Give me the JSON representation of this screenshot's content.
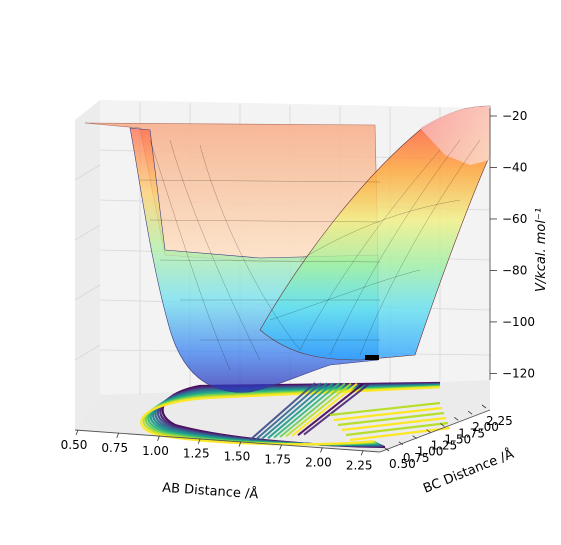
{
  "chart_data": {
    "type": "surface3d",
    "x_axis": {
      "label": "AB Distance /Å",
      "range": [
        0.5,
        2.5
      ],
      "ticks": [
        "0.50",
        "0.75",
        "1.00",
        "1.25",
        "1.50",
        "1.75",
        "2.00",
        "2.25"
      ]
    },
    "y_axis": {
      "label": "BC Distance /Å",
      "range": [
        0.5,
        2.5
      ],
      "ticks": [
        "0.50",
        "0.75",
        "1.00",
        "1.25",
        "1.50",
        "1.75",
        "2.00",
        "2.25"
      ]
    },
    "z_axis": {
      "label": "V/kcal. mol⁻¹",
      "range": [
        -135,
        -20
      ],
      "ticks": [
        "-20",
        "-40",
        "-60",
        "-80",
        "-100",
        "-120"
      ]
    },
    "surface": {
      "colormap": "jet",
      "description_of_shape": "LEPS-type potential energy surface: plateau near -20 at large separations, valleys along both axes reaching about -110 to -120, repulsive walls at short distances",
      "plateau_value": -20,
      "valley_minimum": -118
    },
    "contours": {
      "colormap": "viridis",
      "placement": "projected on floor"
    },
    "trajectory_marker": {
      "color": "#000000",
      "approx_ab": 2.5,
      "approx_bc": 0.75,
      "approx_v": -117
    },
    "grid": true,
    "background_panes": "#f2f2f2"
  }
}
